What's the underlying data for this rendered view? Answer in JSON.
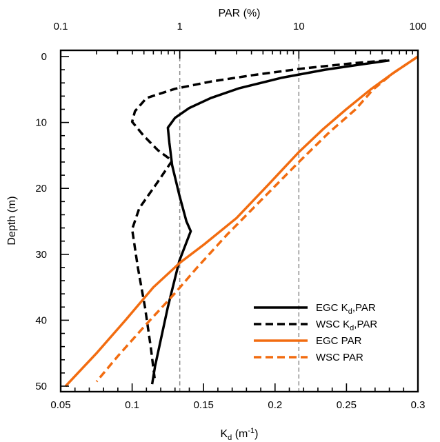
{
  "chart_data": {
    "type": "line",
    "top_axis": {
      "label": "PAR (%)",
      "scale": "log",
      "range": [
        0.1,
        100
      ],
      "ticks": [
        0.1,
        1,
        10,
        100
      ],
      "tick_labels": [
        "0.1",
        "1",
        "10",
        "100"
      ]
    },
    "bottom_axis": {
      "label_main": "K",
      "label_sub": "d",
      "label_unit": " (m",
      "label_sup": "-1",
      "label_close": ")",
      "range": [
        0.05,
        0.3
      ],
      "ticks": [
        0.05,
        0.1,
        0.15,
        0.2,
        0.25,
        0.3
      ],
      "tick_labels": [
        "0.05",
        "0.1",
        "0.15",
        "0.2",
        "0.25",
        "0.3"
      ]
    },
    "left_axis": {
      "label": "Depth (m)",
      "range": [
        0,
        50
      ],
      "inverted": true,
      "ticks": [
        0,
        10,
        20,
        30,
        40,
        50
      ],
      "tick_labels": [
        "0",
        "10",
        "20",
        "30",
        "40",
        "50"
      ]
    },
    "reference_lines_top_axis": [
      1,
      10,
      100
    ],
    "series": [
      {
        "name": "EGC Kd,PAR",
        "legend_main": "EGC K",
        "legend_sub": "d",
        "legend_tail": ",PAR",
        "axis": "bottom",
        "color": "#000000",
        "dash": "solid",
        "points": [
          [
            0.28,
            0.6
          ],
          [
            0.26,
            1.2
          ],
          [
            0.235,
            2.0
          ],
          [
            0.205,
            3.2
          ],
          [
            0.175,
            4.8
          ],
          [
            0.155,
            6.3
          ],
          [
            0.14,
            7.8
          ],
          [
            0.13,
            9.3
          ],
          [
            0.125,
            10.8
          ],
          [
            0.126,
            13.0
          ],
          [
            0.128,
            16.5
          ],
          [
            0.133,
            21.0
          ],
          [
            0.138,
            25.0
          ],
          [
            0.141,
            26.5
          ],
          [
            0.133,
            31.0
          ],
          [
            0.125,
            38.0
          ],
          [
            0.119,
            44.0
          ],
          [
            0.116,
            47.0
          ],
          [
            0.114,
            49.7
          ]
        ]
      },
      {
        "name": "WSC Kd,PAR",
        "legend_main": "WSC K",
        "legend_sub": "d",
        "legend_tail": ",PAR",
        "axis": "bottom",
        "color": "#000000",
        "dash": "dashed",
        "points": [
          [
            0.278,
            0.6
          ],
          [
            0.255,
            1.0
          ],
          [
            0.22,
            1.8
          ],
          [
            0.185,
            2.8
          ],
          [
            0.155,
            3.8
          ],
          [
            0.13,
            4.9
          ],
          [
            0.11,
            6.3
          ],
          [
            0.102,
            8.3
          ],
          [
            0.1,
            9.9
          ],
          [
            0.108,
            12.0
          ],
          [
            0.118,
            14.2
          ],
          [
            0.128,
            15.8
          ],
          [
            0.118,
            19.0
          ],
          [
            0.105,
            23.0
          ],
          [
            0.1,
            26.2
          ],
          [
            0.104,
            32.0
          ],
          [
            0.109,
            38.0
          ],
          [
            0.113,
            44.0
          ],
          [
            0.116,
            49.3
          ]
        ]
      },
      {
        "name": "EGC PAR",
        "legend_main": "EGC PAR",
        "legend_sub": "",
        "legend_tail": "",
        "axis": "top",
        "color": "#f26c10",
        "dash": "solid",
        "points": [
          [
            100,
            0
          ],
          [
            62,
            2.5
          ],
          [
            40,
            5.0
          ],
          [
            25,
            8.0
          ],
          [
            16,
            11.0
          ],
          [
            10,
            14.5
          ],
          [
            5.5,
            19.5
          ],
          [
            3.0,
            24.5
          ],
          [
            1.6,
            28.5
          ],
          [
            1.0,
            31.3
          ],
          [
            0.6,
            35.0
          ],
          [
            0.35,
            40.0
          ],
          [
            0.2,
            45.0
          ],
          [
            0.11,
            50.0
          ]
        ]
      },
      {
        "name": "WSC PAR",
        "legend_main": "WSC PAR",
        "legend_sub": "",
        "legend_tail": "",
        "axis": "top",
        "color": "#f26c10",
        "dash": "dashed",
        "points": [
          [
            100,
            0
          ],
          [
            62,
            2.5
          ],
          [
            42,
            5.0
          ],
          [
            30,
            8.0
          ],
          [
            18,
            11.5
          ],
          [
            10,
            16.0
          ],
          [
            5.0,
            21.5
          ],
          [
            2.5,
            27.0
          ],
          [
            1.4,
            32.0
          ],
          [
            0.9,
            36.0
          ],
          [
            0.5,
            41.0
          ],
          [
            0.3,
            45.5
          ],
          [
            0.2,
            49.3
          ]
        ]
      }
    ],
    "legend_position": "bottom-right"
  }
}
